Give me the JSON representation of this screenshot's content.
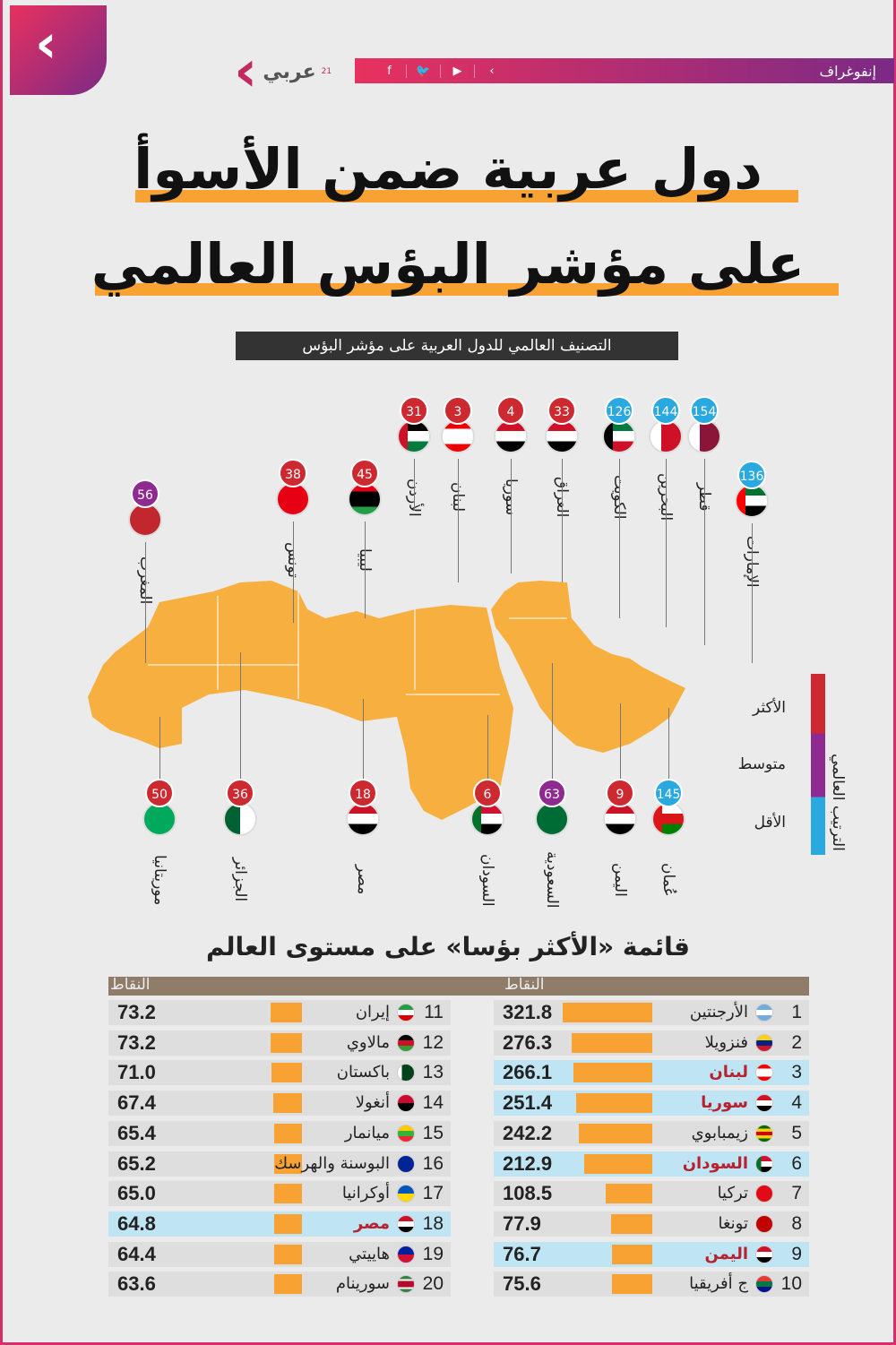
{
  "header": {
    "brand": "عربي",
    "brand_sup": "21",
    "section_label": "إنفوغراف",
    "social_icons": [
      "facebook-icon",
      "twitter-icon",
      "youtube-icon",
      "logo-chevron-icon"
    ]
  },
  "title": {
    "line1": "دول عربية ضمن الأسوأ",
    "line2": "على مؤشر البؤس العالمي"
  },
  "subtitle": "التصنيف العالمي للدول العربية على مؤشر البؤس",
  "colors": {
    "high": "#cc2a30",
    "medium": "#8e2a90",
    "low": "#2aa8e0",
    "accent": "#f7a233",
    "highlight_row": "#bfe5f4",
    "highlight_text": "#b8222e"
  },
  "legend": {
    "title": "الترتيب العالمي",
    "high": "الأكثر",
    "medium": "متوسط",
    "low": "الأقل"
  },
  "map_pins": [
    {
      "country": "الأردن",
      "rank": "31",
      "level": "high",
      "flag": "jo"
    },
    {
      "country": "لبنان",
      "rank": "3",
      "level": "high",
      "flag": "lb"
    },
    {
      "country": "سوريا",
      "rank": "4",
      "level": "high",
      "flag": "sy"
    },
    {
      "country": "العراق",
      "rank": "33",
      "level": "high",
      "flag": "iq"
    },
    {
      "country": "الكويت",
      "rank": "126",
      "level": "low",
      "flag": "kw"
    },
    {
      "country": "البحرين",
      "rank": "144",
      "level": "low",
      "flag": "bh"
    },
    {
      "country": "قطر",
      "rank": "154",
      "level": "low",
      "flag": "qa"
    },
    {
      "country": "الإمارات",
      "rank": "136",
      "level": "low",
      "flag": "ae"
    },
    {
      "country": "تونس",
      "rank": "38",
      "level": "high",
      "flag": "tn"
    },
    {
      "country": "ليبيا",
      "rank": "45",
      "level": "high",
      "flag": "ly"
    },
    {
      "country": "المغرب",
      "rank": "56",
      "level": "medium",
      "flag": "ma"
    },
    {
      "country": "موريتانيا",
      "rank": "50",
      "level": "high",
      "flag": "mr"
    },
    {
      "country": "الجزائر",
      "rank": "36",
      "level": "high",
      "flag": "dz"
    },
    {
      "country": "مصر",
      "rank": "18",
      "level": "high",
      "flag": "eg"
    },
    {
      "country": "السودان",
      "rank": "6",
      "level": "high",
      "flag": "sd"
    },
    {
      "country": "السعودية",
      "rank": "63",
      "level": "medium",
      "flag": "sa"
    },
    {
      "country": "اليمن",
      "rank": "9",
      "level": "high",
      "flag": "ye"
    },
    {
      "country": "عُمان",
      "rank": "145",
      "level": "low",
      "flag": "om"
    }
  ],
  "list_title": "قائمة «الأكثر بؤسا» على مستوى العالم",
  "chart_data": {
    "type": "bar",
    "column_header": "النقاط",
    "orientation": "horizontal",
    "rows": [
      {
        "rank": "1",
        "country": "الأرجنتين",
        "value": 321.8,
        "flag": "ar",
        "arab": false
      },
      {
        "rank": "2",
        "country": "فنزويلا",
        "value": 276.3,
        "flag": "ve",
        "arab": false
      },
      {
        "rank": "3",
        "country": "لبنان",
        "value": 266.1,
        "flag": "lb",
        "arab": true
      },
      {
        "rank": "4",
        "country": "سوريا",
        "value": 251.4,
        "flag": "sy",
        "arab": true
      },
      {
        "rank": "5",
        "country": "زيمبابوي",
        "value": 242.2,
        "flag": "zw",
        "arab": false
      },
      {
        "rank": "6",
        "country": "السودان",
        "value": 212.9,
        "flag": "sd",
        "arab": true
      },
      {
        "rank": "7",
        "country": "تركيا",
        "value": 108.5,
        "flag": "tr",
        "arab": false
      },
      {
        "rank": "8",
        "country": "تونغا",
        "value": 77.9,
        "flag": "to",
        "arab": false
      },
      {
        "rank": "9",
        "country": "اليمن",
        "value": 76.7,
        "flag": "ye",
        "arab": true
      },
      {
        "rank": "10",
        "country": "ج أفريقيا",
        "value": 75.6,
        "flag": "za",
        "arab": false
      },
      {
        "rank": "11",
        "country": "إيران",
        "value": 73.2,
        "flag": "ir",
        "arab": false
      },
      {
        "rank": "12",
        "country": "مالاوي",
        "value": 73.2,
        "flag": "mw",
        "arab": false
      },
      {
        "rank": "13",
        "country": "باكستان",
        "value": 71.0,
        "flag": "pk",
        "arab": false
      },
      {
        "rank": "14",
        "country": "أنغولا",
        "value": 67.4,
        "flag": "ao",
        "arab": false
      },
      {
        "rank": "15",
        "country": "ميانمار",
        "value": 65.4,
        "flag": "mm",
        "arab": false
      },
      {
        "rank": "16",
        "country": "البوسنة والهرسك",
        "value": 65.2,
        "flag": "ba",
        "arab": false
      },
      {
        "rank": "17",
        "country": "أوكرانيا",
        "value": 65.0,
        "flag": "ua",
        "arab": false
      },
      {
        "rank": "18",
        "country": "مصر",
        "value": 64.8,
        "flag": "eg",
        "arab": true
      },
      {
        "rank": "19",
        "country": "هاييتي",
        "value": 64.4,
        "flag": "ht",
        "arab": false
      },
      {
        "rank": "20",
        "country": "سورينام",
        "value": 63.6,
        "flag": "sr",
        "arab": false
      }
    ]
  }
}
